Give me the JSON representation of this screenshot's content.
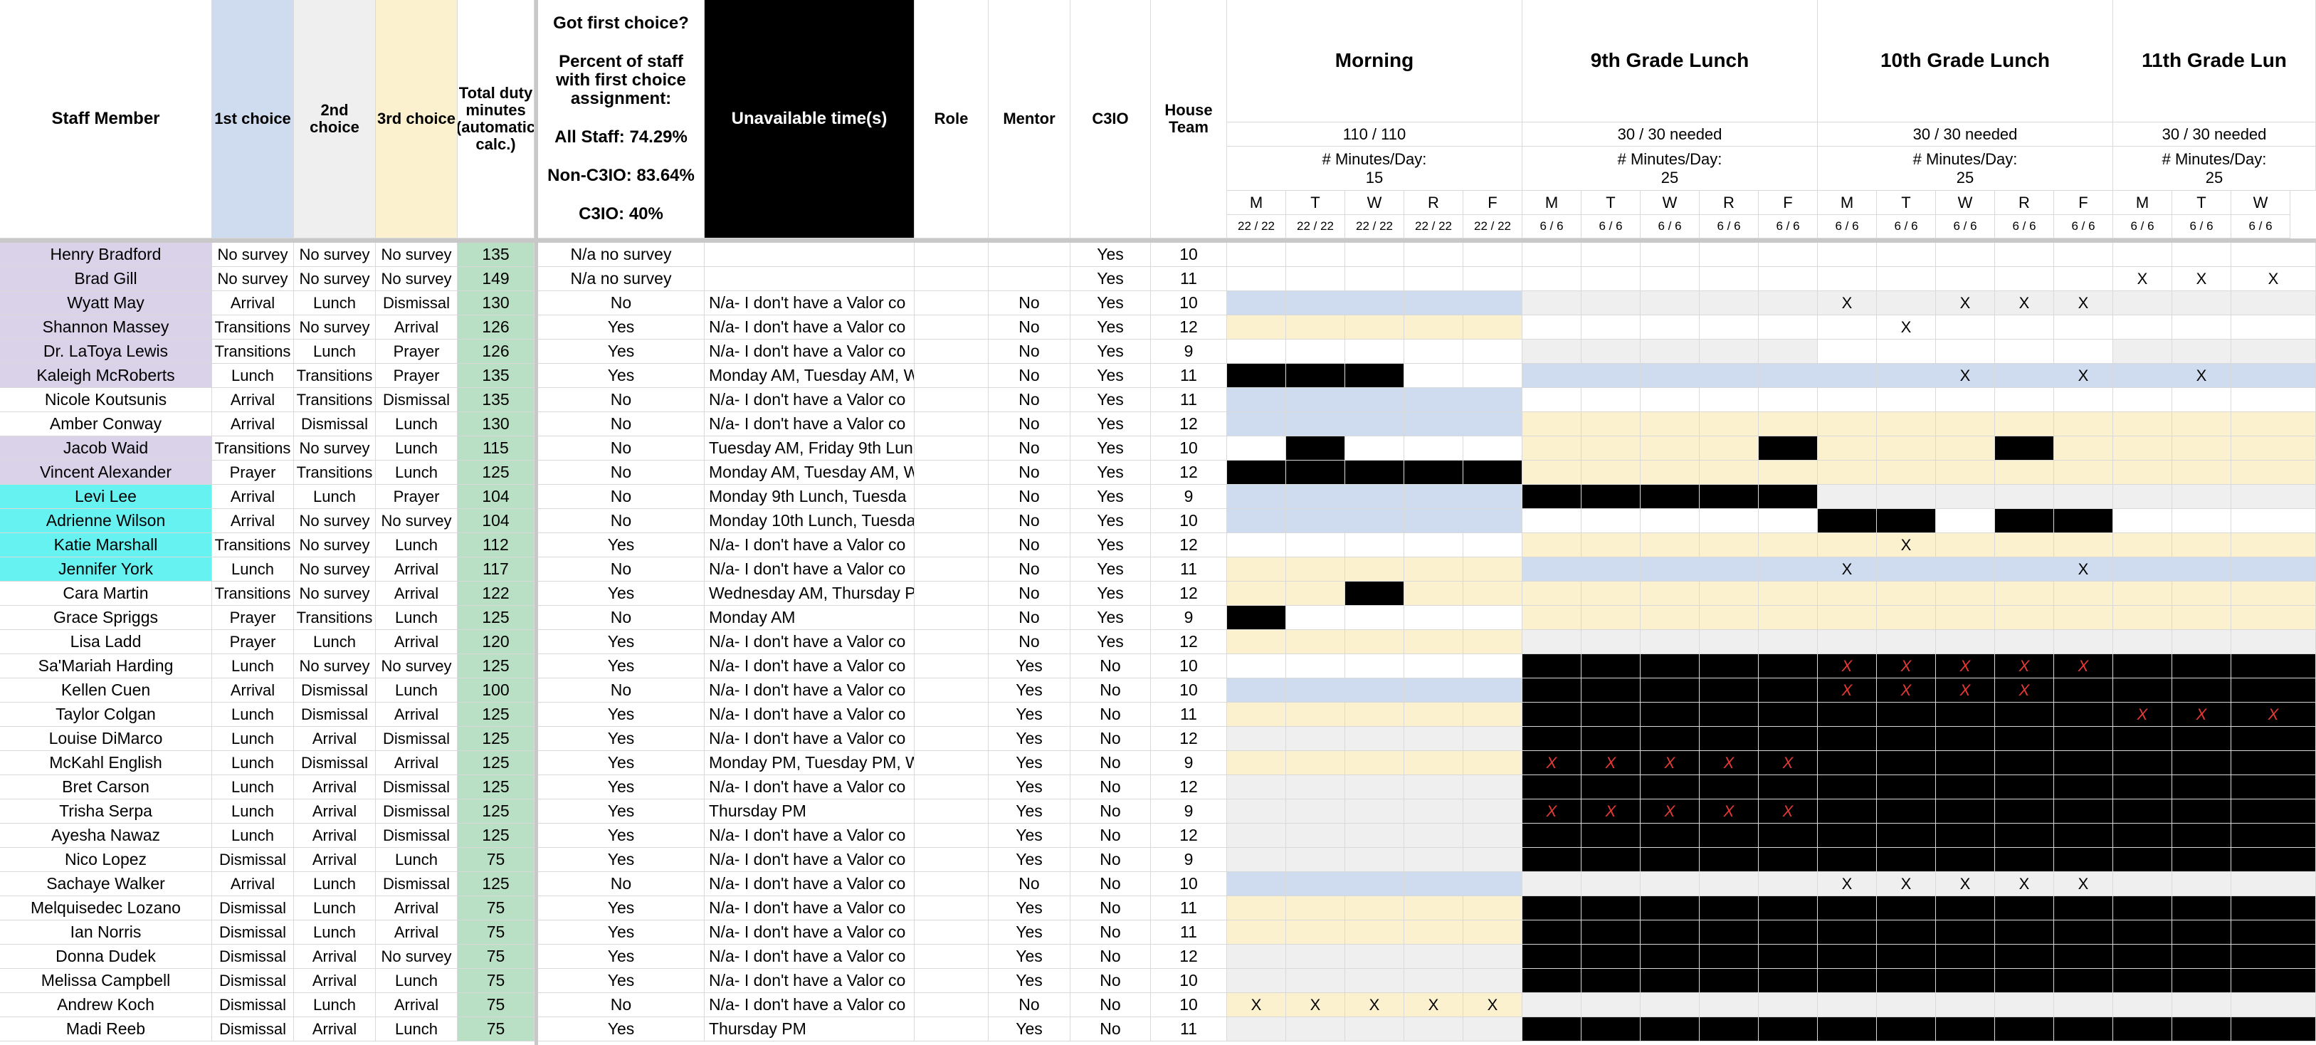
{
  "headers": {
    "staff_member": "Staff Member",
    "first_choice": "1st choice",
    "second_choice": "2nd choice",
    "third_choice": "3rd choice",
    "total_minutes": "Total duty minutes (automatic calc.)",
    "got_first": "Got first choice?",
    "percent_line": "Percent of staff with first choice assignment:",
    "all_staff": "All Staff: 74.29%",
    "non_c3io": "Non-C3IO: 83.64%",
    "c3io": "C3IO: 40%",
    "unavailable": "Unavailable time(s)",
    "role": "Role",
    "mentor": "Mentor",
    "c3io_col": "C3IO",
    "house_team": "House Team"
  },
  "groups": [
    {
      "title": "Morning",
      "needed": "110 / 110",
      "minutes_label": "# Minutes/Day:",
      "minutes": "15",
      "days": [
        "M",
        "T",
        "W",
        "R",
        "F"
      ],
      "counts": [
        "22 / 22",
        "22 / 22",
        "22 / 22",
        "22 / 22",
        "22 / 22"
      ]
    },
    {
      "title": "9th Grade Lunch",
      "needed": "30 / 30 needed",
      "minutes_label": "# Minutes/Day:",
      "minutes": "25",
      "days": [
        "M",
        "T",
        "W",
        "R",
        "F"
      ],
      "counts": [
        "6 / 6",
        "6 / 6",
        "6 / 6",
        "6 / 6",
        "6 / 6"
      ]
    },
    {
      "title": "10th Grade Lunch",
      "needed": "30 / 30 needed",
      "minutes_label": "# Minutes/Day:",
      "minutes": "25",
      "days": [
        "M",
        "T",
        "W",
        "R",
        "F"
      ],
      "counts": [
        "6 / 6",
        "6 / 6",
        "6 / 6",
        "6 / 6",
        "6 / 6"
      ]
    },
    {
      "title": "11th Grade Lun",
      "needed": "30 / 30 needed",
      "minutes_label": "# Minutes/Day:",
      "minutes": "25",
      "days": [
        "M",
        "T",
        "W"
      ],
      "counts": [
        "6 / 6",
        "6 / 6",
        "6 / 6"
      ]
    }
  ],
  "colors": {
    "purple": "#d9d2e9",
    "cyan": "#67f2f2",
    "blue": "#cfdcf0",
    "yellow": "#fcf1cf",
    "grey": "#efefef",
    "green": "#b9e0c4",
    "black": "#000000",
    "white": "#ffffff",
    "xred": "#e53935"
  },
  "rows": [
    {
      "name": "Henry Bradford",
      "nc": "p",
      "c1": "No survey",
      "c2": "No survey",
      "c3": "No survey",
      "tot": "135",
      "got": "N/a no survey",
      "un": "",
      "role": "",
      "mentor": "",
      "c3io": "Yes",
      "team": "10",
      "g": "wwwwwwwwwwwwwwwwwwwwwwwwwwwwwwwwwwwwwwwwwwwwwwwwwwwwwwwwwwwwwwwwwwwwwwwwwwwwwwwwww",
      "x": "                      "
    },
    {
      "name": "Brad Gill",
      "nc": "p",
      "c1": "No survey",
      "c2": "No survey",
      "c3": "No survey",
      "tot": "149",
      "got": "N/a no survey",
      "un": "",
      "role": "",
      "mentor": "",
      "c3io": "Yes",
      "team": "11",
      "g": "wwwwwwwwwwwwwwwwwwwwwwwwwwwwwwwwwwwwwwwwwwwwwwwwwwwwwwwwwwwwwwwwwwwwwwwwwwwwwwwwww",
      "x": "               XXX    "
    },
    {
      "name": "Wyatt May",
      "nc": "p",
      "c1": "Arrival",
      "c2": "Lunch",
      "c3": "Dismissal",
      "tot": "130",
      "got": "No",
      "un": "N/a- I don't have a Valor co",
      "role": "",
      "mentor": "No",
      "c3io": "Yes",
      "team": "10",
      "g": "bbbbbggggggggggggg",
      "x": "          X XXX     "
    },
    {
      "name": "Shannon Massey",
      "nc": "p",
      "c1": "Transitions",
      "c2": "No survey",
      "c3": "Arrival",
      "tot": "126",
      "got": "Yes",
      "un": "N/a- I don't have a Valor co",
      "role": "",
      "mentor": "No",
      "c3io": "Yes",
      "team": "12",
      "g": "yyyyywwwwwwwwwwwww",
      "x": "           X        "
    },
    {
      "name": "Dr. LaToya Lewis",
      "nc": "p",
      "c1": "Transitions",
      "c2": "Lunch",
      "c3": "Prayer",
      "tot": "126",
      "got": "Yes",
      "un": "N/a- I don't have a Valor co",
      "role": "",
      "mentor": "No",
      "c3io": "Yes",
      "team": "9",
      "g": "wwwwwgggggwwwwwggg",
      "x": "                    "
    },
    {
      "name": "Kaleigh McRoberts",
      "nc": "p",
      "c1": "Lunch",
      "c2": "Transitions",
      "c3": "Prayer",
      "tot": "135",
      "got": "Yes",
      "un": "Monday AM, Tuesday AM, W",
      "role": "",
      "mentor": "No",
      "c3io": "Yes",
      "team": "11",
      "g": "kkkwwbbbbbbbbbbbbb",
      "x": "            X X X   "
    },
    {
      "name": "Nicole Koutsunis",
      "nc": "w",
      "c1": "Arrival",
      "c2": "Transitions",
      "c3": "Dismissal",
      "tot": "135",
      "got": "No",
      "un": "N/a- I don't have a Valor co",
      "role": "",
      "mentor": "No",
      "c3io": "Yes",
      "team": "11",
      "g": "bbbbbwwwwwwwwwwwww",
      "x": "                    "
    },
    {
      "name": "Amber Conway",
      "nc": "w",
      "c1": "Arrival",
      "c2": "Dismissal",
      "c3": "Lunch",
      "tot": "130",
      "got": "No",
      "un": "N/a- I don't have a Valor co",
      "role": "",
      "mentor": "No",
      "c3io": "Yes",
      "team": "12",
      "g": "bbbbbyyyyyyyyyyyyy",
      "x": "                    "
    },
    {
      "name": "Jacob Waid",
      "nc": "p",
      "c1": "Transitions",
      "c2": "No survey",
      "c3": "Lunch",
      "tot": "115",
      "got": "No",
      "un": "Tuesday AM, Friday 9th Lun",
      "role": "",
      "mentor": "No",
      "c3io": "Yes",
      "team": "10",
      "g": "wkwwwyyyykyyykyyyy",
      "x": "                    "
    },
    {
      "name": "Vincent Alexander",
      "nc": "p",
      "c1": "Prayer",
      "c2": "Transitions",
      "c3": "Lunch",
      "tot": "125",
      "got": "No",
      "un": "Monday AM, Tuesday AM, W",
      "role": "",
      "mentor": "No",
      "c3io": "Yes",
      "team": "12",
      "g": "kkkkkyyyyyyyyyyyyy",
      "x": "                    "
    },
    {
      "name": "Levi Lee",
      "nc": "c",
      "c1": "Arrival",
      "c2": "Lunch",
      "c3": "Prayer",
      "tot": "104",
      "got": "No",
      "un": "Monday 9th Lunch, Tuesda",
      "role": "",
      "mentor": "No",
      "c3io": "Yes",
      "team": "9",
      "g": "bbbbbkkkkkgggggggg",
      "x": "                    "
    },
    {
      "name": "Adrienne Wilson",
      "nc": "c",
      "c1": "Arrival",
      "c2": "No survey",
      "c3": "No survey",
      "tot": "104",
      "got": "No",
      "un": "Monday 10th Lunch, Tuesda",
      "role": "",
      "mentor": "No",
      "c3io": "Yes",
      "team": "10",
      "g": "bbbbbwwwwwkkwkkwww",
      "x": "                    "
    },
    {
      "name": "Katie Marshall",
      "nc": "c",
      "c1": "Transitions",
      "c2": "No survey",
      "c3": "Lunch",
      "tot": "112",
      "got": "Yes",
      "un": "N/a- I don't have a Valor co",
      "role": "",
      "mentor": "No",
      "c3io": "Yes",
      "team": "12",
      "g": "wwwwwyyyyyyyyyyyyy",
      "x": "           X        "
    },
    {
      "name": "Jennifer York",
      "nc": "c",
      "c1": "Lunch",
      "c2": "No survey",
      "c3": "Arrival",
      "tot": "117",
      "got": "No",
      "un": "N/a- I don't have a Valor co",
      "role": "",
      "mentor": "No",
      "c3io": "Yes",
      "team": "11",
      "g": "yyyyybbbbbbbbbbbbb",
      "x": "          X   X     "
    },
    {
      "name": "Cara Martin",
      "nc": "w",
      "c1": "Transitions",
      "c2": "No survey",
      "c3": "Arrival",
      "tot": "122",
      "got": "Yes",
      "un": "Wednesday AM, Thursday P",
      "role": "",
      "mentor": "No",
      "c3io": "Yes",
      "team": "12",
      "g": "yykyyyyyyyyyyyyyyy",
      "x": "                    "
    },
    {
      "name": "Grace Spriggs",
      "nc": "w",
      "c1": "Prayer",
      "c2": "Transitions",
      "c3": "Lunch",
      "tot": "125",
      "got": "No",
      "un": "Monday AM",
      "role": "",
      "mentor": "No",
      "c3io": "Yes",
      "team": "9",
      "g": "kwwwwyyyyyyyyyyyyy",
      "x": "                    "
    },
    {
      "name": "Lisa Ladd",
      "nc": "w",
      "c1": "Prayer",
      "c2": "Lunch",
      "c3": "Arrival",
      "tot": "120",
      "got": "Yes",
      "un": "N/a- I don't have a Valor co",
      "role": "",
      "mentor": "No",
      "c3io": "Yes",
      "team": "12",
      "g": "yyyyygggggggggggggg",
      "x": "                    "
    },
    {
      "name": "Sa'Mariah Harding",
      "nc": "w",
      "c1": "Lunch",
      "c2": "No survey",
      "c3": "No survey",
      "tot": "125",
      "got": "Yes",
      "un": "N/a- I don't have a Valor co",
      "role": "",
      "mentor": "Yes",
      "c3io": "No",
      "team": "10",
      "g": "wwwwwkkkkkkkkkkkkk",
      "x": "          RRRRR     "
    },
    {
      "name": "Kellen Cuen",
      "nc": "w",
      "c1": "Arrival",
      "c2": "Dismissal",
      "c3": "Lunch",
      "tot": "100",
      "got": "No",
      "un": "N/a- I don't have a Valor co",
      "role": "",
      "mentor": "Yes",
      "c3io": "No",
      "team": "10",
      "g": "bbbbbkkkkkkkkkkkkk",
      "x": "          RRRR      "
    },
    {
      "name": "Taylor Colgan",
      "nc": "w",
      "c1": "Lunch",
      "c2": "Dismissal",
      "c3": "Arrival",
      "tot": "125",
      "got": "Yes",
      "un": "N/a- I don't have a Valor co",
      "role": "",
      "mentor": "Yes",
      "c3io": "No",
      "team": "11",
      "g": "yyyyykkkkkkkkkkkkk",
      "x": "               RRR  "
    },
    {
      "name": "Louise DiMarco",
      "nc": "w",
      "c1": "Lunch",
      "c2": "Arrival",
      "c3": "Dismissal",
      "tot": "125",
      "got": "Yes",
      "un": "N/a- I don't have a Valor co",
      "role": "",
      "mentor": "Yes",
      "c3io": "No",
      "team": "12",
      "g": "gggggkkkkkkkkkkkkk",
      "x": "                    "
    },
    {
      "name": "McKahl English",
      "nc": "w",
      "c1": "Lunch",
      "c2": "Dismissal",
      "c3": "Arrival",
      "tot": "125",
      "got": "Yes",
      "un": "Monday PM, Tuesday PM, W",
      "role": "",
      "mentor": "Yes",
      "c3io": "No",
      "team": "9",
      "g": "yyyyykkkkkkkkkkkkk",
      "x": "     RRRRR          "
    },
    {
      "name": "Bret Carson",
      "nc": "w",
      "c1": "Lunch",
      "c2": "Arrival",
      "c3": "Dismissal",
      "tot": "125",
      "got": "Yes",
      "un": "N/a- I don't have a Valor co",
      "role": "",
      "mentor": "Yes",
      "c3io": "No",
      "team": "12",
      "g": "gggggkkkkkkkkkkkkk",
      "x": "                    "
    },
    {
      "name": "Trisha Serpa",
      "nc": "w",
      "c1": "Lunch",
      "c2": "Arrival",
      "c3": "Dismissal",
      "tot": "125",
      "got": "Yes",
      "un": "Thursday PM",
      "role": "",
      "mentor": "Yes",
      "c3io": "No",
      "team": "9",
      "g": "gggggkkkkkkkkkkkkk",
      "x": "     RRRRR          "
    },
    {
      "name": "Ayesha Nawaz",
      "nc": "w",
      "c1": "Lunch",
      "c2": "Arrival",
      "c3": "Dismissal",
      "tot": "125",
      "got": "Yes",
      "un": "N/a- I don't have a Valor co",
      "role": "",
      "mentor": "Yes",
      "c3io": "No",
      "team": "12",
      "g": "gggggkkkkkkkkkkkkk",
      "x": "                    "
    },
    {
      "name": "Nico Lopez",
      "nc": "w",
      "c1": "Dismissal",
      "c2": "Arrival",
      "c3": "Lunch",
      "tot": "75",
      "got": "Yes",
      "un": "N/a- I don't have a Valor co",
      "role": "",
      "mentor": "Yes",
      "c3io": "No",
      "team": "9",
      "g": "gggggkkkkkkkkkkkkk",
      "x": "                    "
    },
    {
      "name": "Sachaye Walker",
      "nc": "w",
      "c1": "Arrival",
      "c2": "Lunch",
      "c3": "Dismissal",
      "tot": "125",
      "got": "No",
      "un": "N/a- I don't have a Valor co",
      "role": "",
      "mentor": "No",
      "c3io": "No",
      "team": "10",
      "g": "bbbbbggggggggggggg",
      "x": "          XXXXX     "
    },
    {
      "name": "Melquisedec Lozano",
      "nc": "w",
      "c1": "Dismissal",
      "c2": "Lunch",
      "c3": "Arrival",
      "tot": "75",
      "got": "Yes",
      "un": "N/a- I don't have a Valor co",
      "role": "",
      "mentor": "Yes",
      "c3io": "No",
      "team": "11",
      "g": "yyyyykkkkkkkkkkkkk",
      "x": "                    "
    },
    {
      "name": "Ian Norris",
      "nc": "w",
      "c1": "Dismissal",
      "c2": "Lunch",
      "c3": "Arrival",
      "tot": "75",
      "got": "Yes",
      "un": "N/a- I don't have a Valor co",
      "role": "",
      "mentor": "Yes",
      "c3io": "No",
      "team": "11",
      "g": "yyyyykkkkkkkkkkkkk",
      "x": "                    "
    },
    {
      "name": "Donna Dudek",
      "nc": "w",
      "c1": "Dismissal",
      "c2": "Arrival",
      "c3": "No survey",
      "tot": "75",
      "got": "Yes",
      "un": "N/a- I don't have a Valor co",
      "role": "",
      "mentor": "Yes",
      "c3io": "No",
      "team": "12",
      "g": "gggggkkkkkkkkkkkkk",
      "x": "                    "
    },
    {
      "name": "Melissa Campbell",
      "nc": "w",
      "c1": "Dismissal",
      "c2": "Arrival",
      "c3": "Lunch",
      "tot": "75",
      "got": "Yes",
      "un": "N/a- I don't have a Valor co",
      "role": "",
      "mentor": "Yes",
      "c3io": "No",
      "team": "10",
      "g": "gggggkkkkkkkkkkkkk",
      "x": "                    "
    },
    {
      "name": "Andrew Koch",
      "nc": "w",
      "c1": "Dismissal",
      "c2": "Lunch",
      "c3": "Arrival",
      "tot": "75",
      "got": "No",
      "un": "N/a- I don't have a Valor co",
      "role": "",
      "mentor": "No",
      "c3io": "No",
      "team": "10",
      "g": "yyyyyggggggggggggg",
      "x": "XXXXX               "
    },
    {
      "name": "Madi Reeb",
      "nc": "w",
      "c1": "Dismissal",
      "c2": "Arrival",
      "c3": "Lunch",
      "tot": "75",
      "got": "Yes",
      "un": "Thursday PM",
      "role": "",
      "mentor": "Yes",
      "c3io": "No",
      "team": "11",
      "g": "gggggkkkkkkkkkkkkk",
      "x": "                    "
    }
  ]
}
